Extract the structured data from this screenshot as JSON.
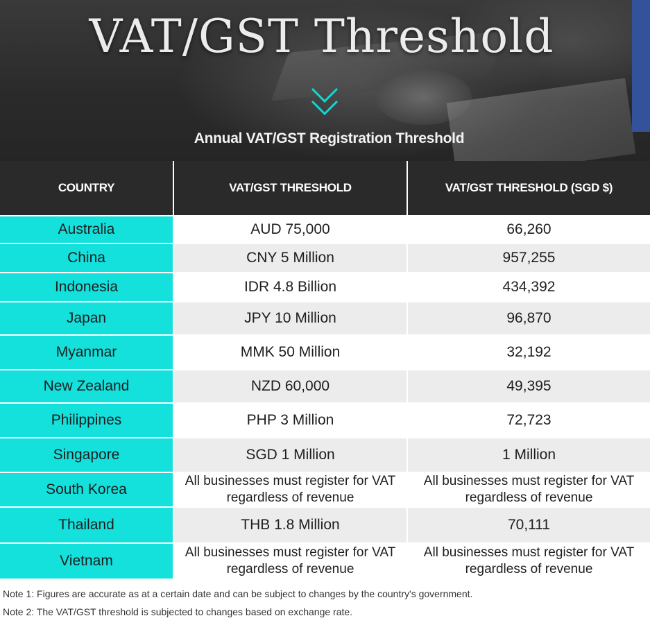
{
  "banner": {
    "title": "VAT/GST Threshold",
    "subtitle": "Annual VAT/GST Registration Threshold",
    "icon": "double-chevron-down-icon",
    "colors": {
      "accent": "#14e0dc",
      "header_bg": "#2a2a2a",
      "strip": "#34529a"
    }
  },
  "table": {
    "headers": [
      "COUNTRY",
      "VAT/GST THRESHOLD",
      "VAT/GST THRESHOLD (SGD $)"
    ],
    "rows": [
      {
        "country": "Australia",
        "threshold": "AUD 75,000",
        "sgd": "66,260"
      },
      {
        "country": "China",
        "threshold": "CNY 5 Million",
        "sgd": "957,255"
      },
      {
        "country": "Indonesia",
        "threshold": "IDR 4.8 Billion",
        "sgd": "434,392"
      },
      {
        "country": "Japan",
        "threshold": "JPY 10 Million",
        "sgd": "96,870"
      },
      {
        "country": "Myanmar",
        "threshold": "MMK 50 Million",
        "sgd": "32,192"
      },
      {
        "country": "New Zealand",
        "threshold": "NZD 60,000",
        "sgd": "49,395"
      },
      {
        "country": "Philippines",
        "threshold": "PHP 3 Million",
        "sgd": "72,723"
      },
      {
        "country": "Singapore",
        "threshold": "SGD 1 Million",
        "sgd": "1 Million"
      },
      {
        "country": "South Korea",
        "threshold": "All businesses must register for VAT regardless of revenue",
        "sgd": "All businesses must register for VAT regardless of revenue"
      },
      {
        "country": "Thailand",
        "threshold": "THB 1.8 Million",
        "sgd": "70,111"
      },
      {
        "country": "Vietnam",
        "threshold": "All businesses must register for VAT regardless of revenue",
        "sgd": "All businesses must register for VAT regardless of revenue"
      }
    ]
  },
  "notes": [
    "Note 1: Figures are accurate as at a certain date and can be subject to changes by the country's government.",
    "Note 2: The VAT/GST threshold is subjected to changes based on exchange rate."
  ]
}
